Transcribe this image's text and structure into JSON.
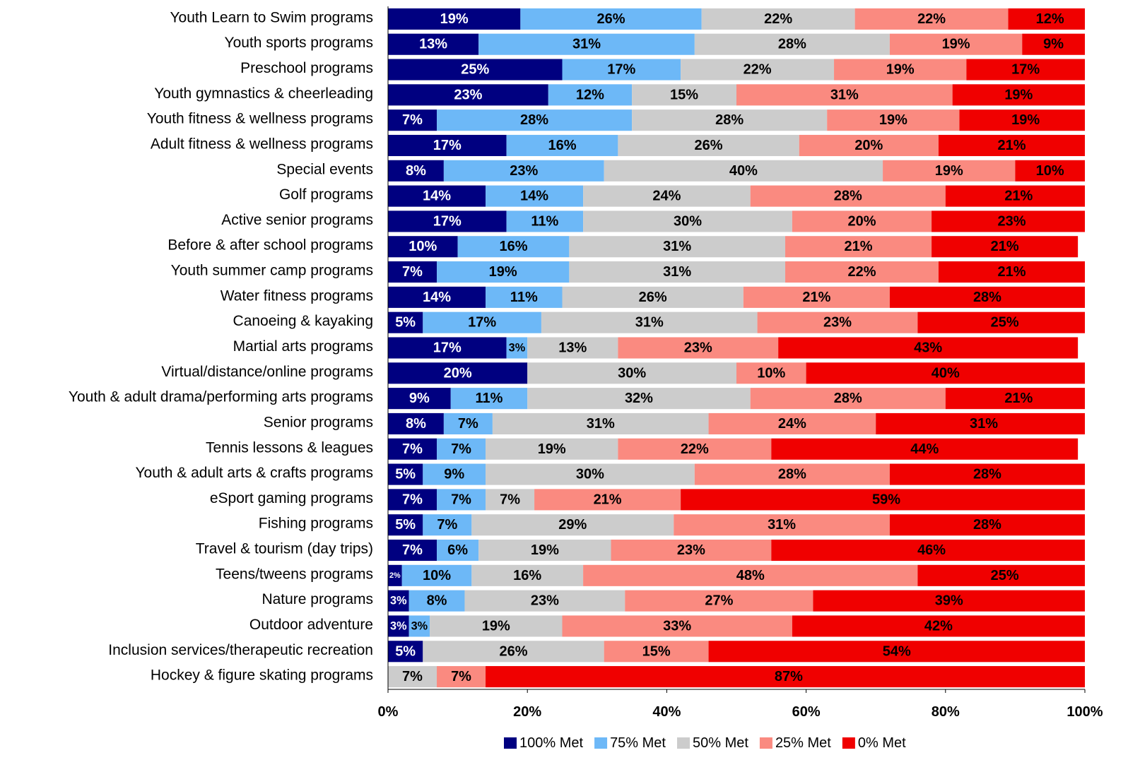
{
  "chart_data": {
    "type": "bar",
    "orientation": "horizontal",
    "stacked": true,
    "categories": [
      "Youth Learn to Swim programs",
      "Youth sports programs",
      "Preschool programs",
      "Youth gymnastics & cheerleading",
      "Youth fitness & wellness programs",
      "Adult fitness & wellness programs",
      "Special events",
      "Golf programs",
      "Active senior programs",
      "Before & after school programs",
      "Youth summer camp programs",
      "Water fitness programs",
      "Canoeing & kayaking",
      "Martial arts programs",
      "Virtual/distance/online programs",
      "Youth & adult drama/performing arts programs",
      "Senior programs",
      "Tennis lessons & leagues",
      "Youth & adult arts & crafts programs",
      "eSport gaming programs",
      "Fishing programs",
      "Travel & tourism (day trips)",
      "Teens/tweens programs",
      "Nature programs",
      "Outdoor adventure",
      "Inclusion services/therapeutic recreation",
      "Hockey & figure skating programs"
    ],
    "series": [
      {
        "name": "100% Met",
        "color": "#000080",
        "values": [
          19,
          13,
          25,
          23,
          7,
          17,
          8,
          14,
          17,
          10,
          7,
          14,
          5,
          17,
          20,
          9,
          8,
          7,
          5,
          7,
          5,
          7,
          2,
          3,
          3,
          5,
          0
        ]
      },
      {
        "name": "75% Met",
        "color": "#6db8f7",
        "values": [
          26,
          31,
          17,
          12,
          28,
          16,
          23,
          14,
          11,
          16,
          19,
          11,
          17,
          3,
          0,
          11,
          7,
          7,
          9,
          7,
          7,
          6,
          10,
          8,
          3,
          0,
          0
        ]
      },
      {
        "name": "50% Met",
        "color": "#cccccc",
        "values": [
          22,
          28,
          22,
          15,
          28,
          26,
          40,
          24,
          30,
          31,
          31,
          26,
          31,
          13,
          30,
          32,
          31,
          19,
          30,
          7,
          29,
          19,
          16,
          23,
          19,
          26,
          7
        ]
      },
      {
        "name": "25% Met",
        "color": "#fa8a80",
        "values": [
          22,
          19,
          19,
          31,
          19,
          20,
          19,
          28,
          20,
          21,
          22,
          21,
          23,
          23,
          10,
          28,
          24,
          22,
          28,
          21,
          31,
          23,
          48,
          27,
          33,
          15,
          7
        ]
      },
      {
        "name": "0% Met",
        "color": "#f00000",
        "values": [
          12,
          9,
          17,
          19,
          19,
          21,
          10,
          21,
          23,
          21,
          21,
          28,
          25,
          43,
          40,
          21,
          31,
          44,
          28,
          59,
          28,
          46,
          25,
          39,
          42,
          54,
          87
        ]
      }
    ],
    "xlim": [
      0,
      100
    ],
    "xticks": [
      {
        "value": 0,
        "label": "0%"
      },
      {
        "value": 20,
        "label": "20%"
      },
      {
        "value": 40,
        "label": "40%"
      },
      {
        "value": 60,
        "label": "60%"
      },
      {
        "value": 80,
        "label": "80%"
      },
      {
        "value": 100,
        "label": "100%"
      }
    ],
    "value_labels": [
      [
        "19%",
        "13%",
        "25%",
        "23%",
        "7%",
        "17%",
        "8%",
        "14%",
        "17%",
        "10%",
        "7%",
        "14%",
        "5%",
        "17%",
        "20%",
        "9%",
        "8%",
        "7%",
        "5%",
        "7%",
        "5%",
        "7%",
        "2%",
        "3%",
        "3%",
        "5%",
        null
      ],
      [
        "26%",
        "31%",
        "17%",
        "12%",
        "28%",
        "16%",
        "23%",
        "14%",
        "11%",
        "16%",
        "19%",
        "11%",
        "17%",
        "3%",
        null,
        "11%",
        "7%",
        "7%",
        "9%",
        "7%",
        "7%",
        "6%",
        "10%",
        "8%",
        "3%",
        null,
        null
      ],
      [
        "22%",
        "28%",
        "22%",
        "15%",
        "28%",
        "26%",
        "40%",
        "24%",
        "30%",
        "31%",
        "31%",
        "26%",
        "31%",
        "13%",
        "30%",
        "32%",
        "31%",
        "19%",
        "30%",
        "7%",
        "29%",
        "19%",
        "16%",
        "23%",
        "19%",
        "26%",
        "7%"
      ],
      [
        "22%",
        "19%",
        "19%",
        "31%",
        "19%",
        "20%",
        "19%",
        "28%",
        "20%",
        "21%",
        "22%",
        "21%",
        "23%",
        "23%",
        "10%",
        "28%",
        "24%",
        "22%",
        "28%",
        "21%",
        "31%",
        "23%",
        "48%",
        "27%",
        "33%",
        "15%",
        "7%"
      ],
      [
        "12%",
        "9%",
        "17%",
        "19%",
        "19%",
        "21%",
        "10%",
        "21%",
        "23%",
        "21%",
        "21%",
        "28%",
        "25%",
        "43%",
        "40%",
        "21%",
        "31%",
        "44%",
        "28%",
        "59%",
        "28%",
        "46%",
        "25%",
        "39%",
        "42%",
        "54%",
        "87%"
      ]
    ],
    "legend": "bottom"
  }
}
